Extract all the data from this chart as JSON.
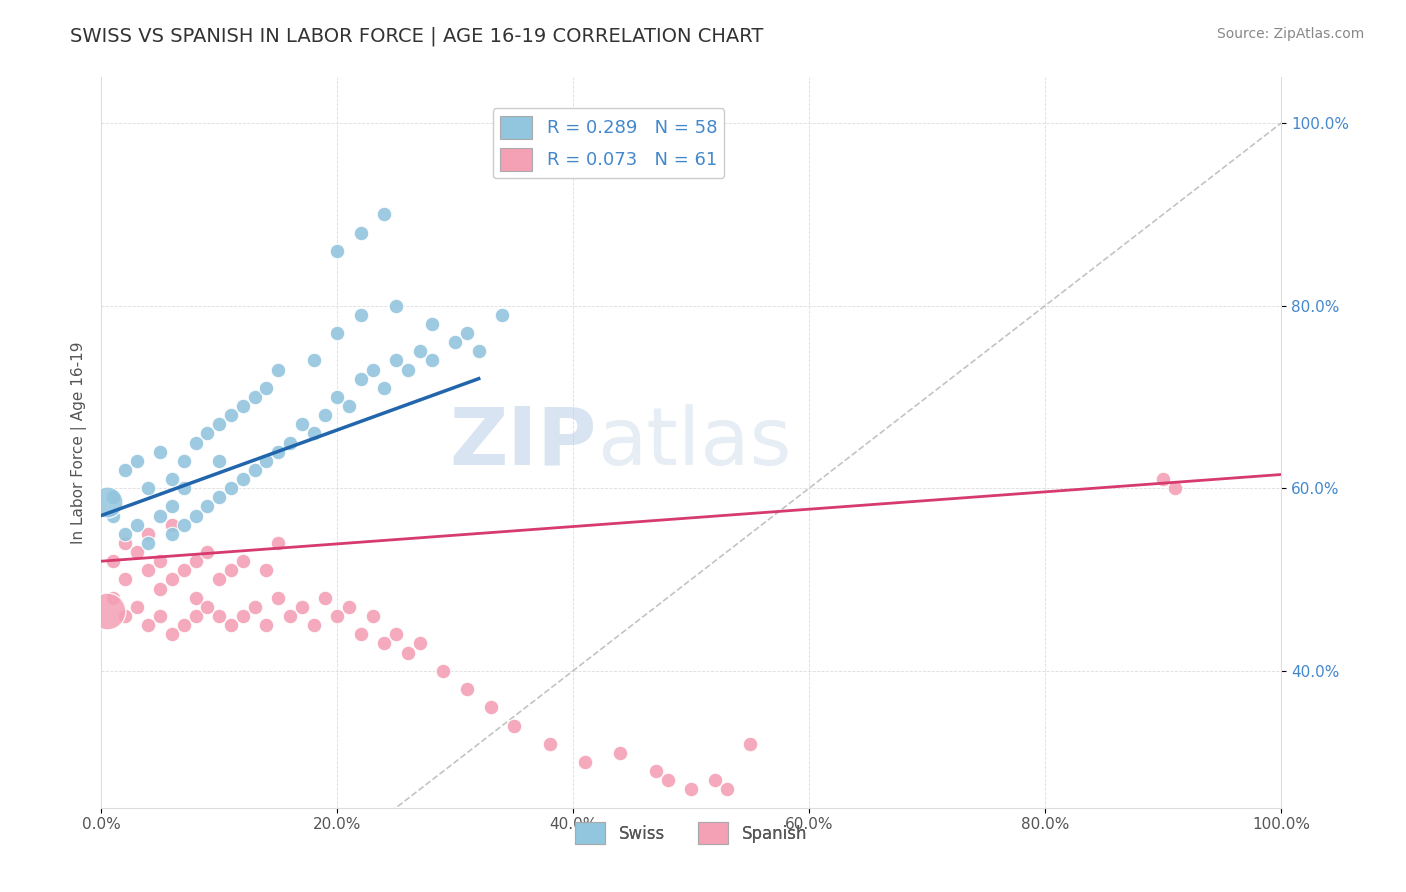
{
  "title": "SWISS VS SPANISH IN LABOR FORCE | AGE 16-19 CORRELATION CHART",
  "source_text": "Source: ZipAtlas.com",
  "ylabel": "In Labor Force | Age 16-19",
  "xlim": [
    0.0,
    1.0
  ],
  "ylim": [
    0.25,
    1.05
  ],
  "xticks": [
    0.0,
    0.2,
    0.4,
    0.6,
    0.8,
    1.0
  ],
  "yticks": [
    0.4,
    0.6,
    0.8,
    1.0
  ],
  "swiss_color": "#92c5de",
  "swiss_edge_color": "#5a9dc8",
  "spanish_color": "#f4a0b5",
  "spanish_edge_color": "#e06080",
  "swiss_R": 0.289,
  "swiss_N": 58,
  "spanish_R": 0.073,
  "spanish_N": 61,
  "swiss_trend_color": "#2166ac",
  "spanish_trend_color": "#d63a6e",
  "diagonal_color": "#aaaaaa",
  "watermark": "ZIPatlas",
  "watermark_color": "#c8d8e8",
  "background_color": "#ffffff",
  "tick_color": "#4488cc",
  "grid_color": "#dddddd",
  "swiss_x": [
    0.01,
    0.01,
    0.02,
    0.02,
    0.03,
    0.03,
    0.04,
    0.04,
    0.05,
    0.05,
    0.06,
    0.06,
    0.06,
    0.07,
    0.07,
    0.07,
    0.08,
    0.08,
    0.09,
    0.09,
    0.1,
    0.1,
    0.1,
    0.11,
    0.11,
    0.12,
    0.12,
    0.13,
    0.13,
    0.14,
    0.14,
    0.15,
    0.15,
    0.16,
    0.17,
    0.18,
    0.18,
    0.19,
    0.2,
    0.21,
    0.22,
    0.23,
    0.24,
    0.25,
    0.26,
    0.27,
    0.28,
    0.3,
    0.32,
    0.2,
    0.22,
    0.25,
    0.28,
    0.31,
    0.34,
    0.2,
    0.22,
    0.24
  ],
  "swiss_y": [
    0.57,
    0.59,
    0.55,
    0.62,
    0.56,
    0.63,
    0.54,
    0.6,
    0.57,
    0.64,
    0.55,
    0.61,
    0.58,
    0.56,
    0.63,
    0.6,
    0.57,
    0.65,
    0.58,
    0.66,
    0.59,
    0.67,
    0.63,
    0.6,
    0.68,
    0.61,
    0.69,
    0.62,
    0.7,
    0.63,
    0.71,
    0.64,
    0.73,
    0.65,
    0.67,
    0.66,
    0.74,
    0.68,
    0.7,
    0.69,
    0.72,
    0.73,
    0.71,
    0.74,
    0.73,
    0.75,
    0.74,
    0.76,
    0.75,
    0.77,
    0.79,
    0.8,
    0.78,
    0.77,
    0.79,
    0.86,
    0.88,
    0.9
  ],
  "spanish_x": [
    0.01,
    0.01,
    0.02,
    0.02,
    0.02,
    0.03,
    0.03,
    0.04,
    0.04,
    0.04,
    0.05,
    0.05,
    0.05,
    0.06,
    0.06,
    0.06,
    0.07,
    0.07,
    0.08,
    0.08,
    0.08,
    0.09,
    0.09,
    0.1,
    0.1,
    0.11,
    0.11,
    0.12,
    0.12,
    0.13,
    0.14,
    0.14,
    0.15,
    0.15,
    0.16,
    0.17,
    0.18,
    0.19,
    0.2,
    0.21,
    0.22,
    0.23,
    0.24,
    0.25,
    0.26,
    0.27,
    0.29,
    0.31,
    0.33,
    0.35,
    0.38,
    0.41,
    0.44,
    0.47,
    0.48,
    0.5,
    0.52,
    0.53,
    0.55,
    0.9,
    0.91
  ],
  "spanish_y": [
    0.52,
    0.48,
    0.5,
    0.46,
    0.54,
    0.47,
    0.53,
    0.45,
    0.51,
    0.55,
    0.46,
    0.52,
    0.49,
    0.44,
    0.5,
    0.56,
    0.45,
    0.51,
    0.46,
    0.52,
    0.48,
    0.47,
    0.53,
    0.46,
    0.5,
    0.45,
    0.51,
    0.46,
    0.52,
    0.47,
    0.45,
    0.51,
    0.48,
    0.54,
    0.46,
    0.47,
    0.45,
    0.48,
    0.46,
    0.47,
    0.44,
    0.46,
    0.43,
    0.44,
    0.42,
    0.43,
    0.4,
    0.38,
    0.36,
    0.34,
    0.32,
    0.3,
    0.31,
    0.29,
    0.28,
    0.27,
    0.28,
    0.27,
    0.32,
    0.61,
    0.6
  ],
  "swiss_big_x": [
    0.01
  ],
  "swiss_big_y": [
    0.59
  ],
  "swiss_big_size": 600,
  "spanish_big_x": [
    0.01
  ],
  "spanish_big_y": [
    0.46
  ],
  "spanish_big_size": 800,
  "swiss_trend_x0": 0.0,
  "swiss_trend_x1": 0.32,
  "swiss_trend_y0": 0.57,
  "swiss_trend_y1": 0.72,
  "spanish_trend_x0": 0.0,
  "spanish_trend_x1": 1.0,
  "spanish_trend_y0": 0.52,
  "spanish_trend_y1": 0.615
}
